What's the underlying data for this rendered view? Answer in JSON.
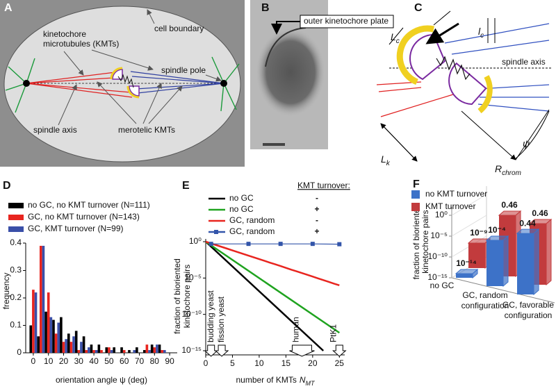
{
  "panel_a": {
    "label": "A",
    "kmt_label": [
      "kinetochore",
      "microtubules (KMTs)"
    ],
    "cell_boundary": "cell boundary",
    "spindle_pole": "spindle pole",
    "spindle_axis": "spindle axis",
    "merotelic": "merotelic KMTs"
  },
  "panel_b": {
    "label": "B",
    "plate": "outer kinetochore plate"
  },
  "panel_c": {
    "label": "C",
    "Lc": {
      "main": "L",
      "sub": "c"
    },
    "lc": {
      "main": "l",
      "sub": "c"
    },
    "spindle_axis": "spindle axis",
    "Lk": {
      "main": "L",
      "sub": "k"
    },
    "Rchrom": {
      "main": "R",
      "sub": "chrom"
    },
    "psi": "ψ"
  },
  "chart_data": [
    {
      "type": "bar",
      "panel_label": "D",
      "xlabel": "orientation angle ψ (deg)",
      "ylabel": "frequency",
      "x": [
        0,
        5,
        10,
        15,
        20,
        25,
        30,
        35,
        40,
        45,
        50,
        55,
        60,
        65,
        70,
        75,
        80,
        85,
        90
      ],
      "xlim": [
        -5,
        95
      ],
      "xticks": [
        0,
        10,
        20,
        30,
        40,
        50,
        60,
        70,
        80,
        90
      ],
      "ylim": [
        0,
        0.4
      ],
      "yticks": [
        0,
        0.1,
        0.2,
        0.3,
        0.4
      ],
      "series": [
        {
          "name": "no GC, no KMT turnover (N=111)",
          "color": "#000000",
          "values": [
            0.1,
            0.06,
            0.15,
            0.12,
            0.13,
            0.07,
            0.08,
            0.06,
            0.03,
            0.03,
            0.02,
            0.02,
            0.02,
            0.01,
            0.02,
            0.01,
            0.03,
            0.03,
            0
          ]
        },
        {
          "name": "GC, no KMT turnover (N=143)",
          "color": "#e8251f",
          "values": [
            0.23,
            0.39,
            0.22,
            0.07,
            0.04,
            0.04,
            0.01,
            0.01,
            0.01,
            0.01,
            0.02,
            0,
            0.01,
            0,
            0,
            0.03,
            0.02,
            0.01,
            0
          ]
        },
        {
          "name": "GC, KMT turnover (N=99)",
          "color": "#3a4fa8",
          "values": [
            0.22,
            0.39,
            0.13,
            0.11,
            0.05,
            0.06,
            0.04,
            0.02,
            0.01,
            0,
            0.01,
            0,
            0,
            0.01,
            0,
            0.01,
            0.03,
            0.01,
            0
          ]
        }
      ]
    },
    {
      "type": "line",
      "panel_label": "E",
      "yscale": "log",
      "legend_title": "KMT turnover:",
      "xlabel": {
        "text": "number of KMTs",
        "symbol": "N",
        "sub": "MT"
      },
      "ylabel": [
        "fraction of bioriented",
        "kinetochore pairs"
      ],
      "xlim": [
        0,
        26
      ],
      "xticks": [
        0,
        5,
        10,
        15,
        20,
        25
      ],
      "ylim": [
        1e-15,
        1
      ],
      "yticks": [
        {
          "value": 1,
          "label": "10⁰"
        },
        {
          "value": 1e-05,
          "label": "10⁻⁵"
        },
        {
          "value": 1e-10,
          "label": "10⁻¹⁰"
        },
        {
          "value": 1e-15,
          "label": "10⁻¹⁵"
        }
      ],
      "series": [
        {
          "name": "no GC",
          "turnover": "-",
          "color": "#000000",
          "x": [
            0,
            22
          ],
          "values": [
            1,
            1e-15
          ]
        },
        {
          "name": "no GC",
          "turnover": "+",
          "color": "#1fa31f",
          "x": [
            0,
            25
          ],
          "values": [
            1,
            3e-13
          ]
        },
        {
          "name": "GC, random",
          "turnover": "-",
          "color": "#e8251f",
          "x": [
            0,
            1,
            2,
            3,
            4,
            5,
            6,
            7,
            8,
            9,
            10,
            11,
            12,
            13,
            14,
            15,
            16,
            17,
            18,
            19,
            20,
            21,
            22,
            23,
            24,
            25
          ],
          "values": [
            1,
            0.575,
            0.331,
            0.19,
            0.11,
            0.063,
            0.036,
            0.021,
            0.012,
            0.0069,
            0.004,
            0.0023,
            0.0013,
            0.00076,
            0.00044,
            0.00025,
            0.00014,
            8.3e-05,
            4.8e-05,
            2.8e-05,
            1.6e-05,
            9.1e-06,
            5.2e-06,
            3e-06,
            1.7e-06,
            1e-06
          ]
        },
        {
          "name": "GC, random",
          "turnover": "+",
          "color": "#3355aa",
          "marker": "square",
          "x": [
            1,
            8,
            14,
            20,
            25
          ],
          "values": [
            0.5,
            0.5,
            0.5,
            0.5,
            0.45
          ]
        }
      ],
      "annotations": [
        {
          "text": "budding yeast",
          "x": 1
        },
        {
          "text": "fission yeast",
          "x": 3
        },
        {
          "text": "human",
          "x": 18
        },
        {
          "text": "PtK1",
          "x": 25
        }
      ]
    },
    {
      "type": "bar3d",
      "panel_label": "F",
      "yscale": "log",
      "ylabel": [
        "fraction of bioriented",
        "kinetochore pairs"
      ],
      "categories": [
        "no GC",
        "GC, random configuration",
        "GC, favorable configuration"
      ],
      "ylim": [
        1e-15,
        100
      ],
      "yticks": [
        {
          "value": 1,
          "label": "10⁰"
        },
        {
          "value": 1e-05,
          "label": "10⁻⁵"
        },
        {
          "value": 1e-10,
          "label": "10⁻¹⁰"
        },
        {
          "value": 1e-15,
          "label": "10⁻¹⁵"
        }
      ],
      "series": [
        {
          "name": "no KMT turnover",
          "color": "#3d72c8",
          "values": [
            1e-14,
            0.0001,
            0.44
          ],
          "value_labels": [
            "10⁻¹⁴",
            "10⁻⁴",
            "0.44"
          ]
        },
        {
          "name": "KMT turnover",
          "color": "#c23b3d",
          "values": [
            1e-09,
            0.46,
            0.46
          ],
          "value_labels": [
            "10⁻⁹",
            "0.46",
            "0.46"
          ]
        }
      ]
    }
  ]
}
